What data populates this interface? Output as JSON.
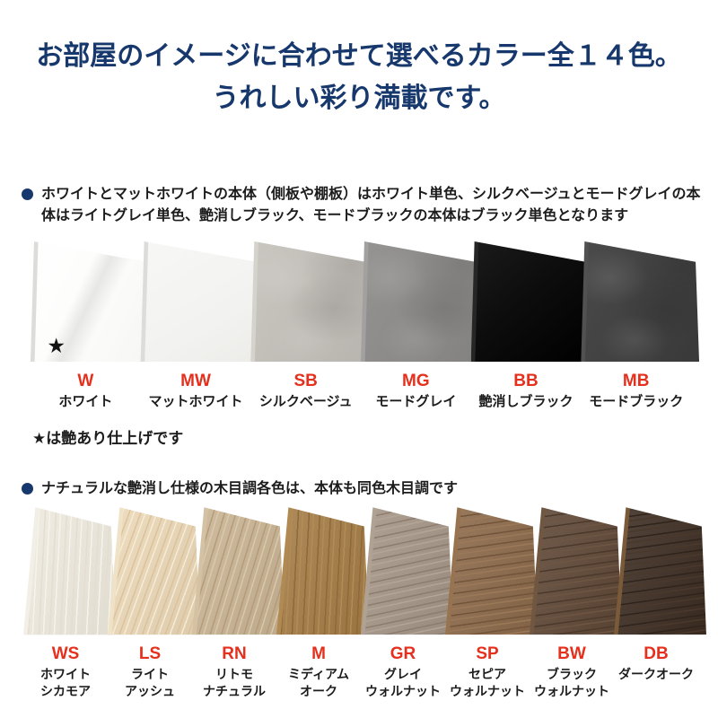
{
  "colors": {
    "title_navy": "#17386d",
    "bullet_navy": "#17386d",
    "code_red": "#e5301d",
    "body_text": "#1c1c1c",
    "page_background": "#ffffff"
  },
  "title": {
    "line1": "お部屋のイメージに合わせて選べるカラー全１４色。",
    "line2": "うれしい彩り満載です。"
  },
  "solid_section": {
    "note": "ホワイトとマットホワイトの本体（側板や棚板）はホワイト単色、シルクベージュとモードグレイの本体はライトグレイ単色、艶消しブラック、モードブラックの本体はブラック単色となります",
    "footnote": "★は艶あり仕上げです",
    "swatches": [
      {
        "code": "W",
        "name_lines": [
          "ホワイト"
        ],
        "finish": "gloss-white",
        "base": "#f6f6f5",
        "edge": "#dcdcda",
        "mark": "★"
      },
      {
        "code": "MW",
        "name_lines": [
          "マットホワイト"
        ],
        "finish": "matte-white",
        "base": "#f2f2f0",
        "edge": "#dcdcda"
      },
      {
        "code": "SB",
        "name_lines": [
          "シルクベージュ"
        ],
        "finish": "stone",
        "base": "#c6c2bc",
        "edge": "#d6d2cc"
      },
      {
        "code": "MG",
        "name_lines": [
          "モードグレイ"
        ],
        "finish": "stone",
        "base": "#8d8c8a",
        "edge": "#a2a19f"
      },
      {
        "code": "BB",
        "name_lines": [
          "艶消しブラック"
        ],
        "finish": "flat",
        "base": "#0d0d0d",
        "edge": "#262626"
      },
      {
        "code": "MB",
        "name_lines": [
          "モードブラック"
        ],
        "finish": "stone",
        "base": "#3d3d3d",
        "edge": "#515151"
      }
    ]
  },
  "wood_section": {
    "note": "ナチュラルな艶消し仕様の木目調各色は、本体も同色木目調です",
    "swatches": [
      {
        "code": "WS",
        "name_lines": [
          "ホワイト",
          "シカモア"
        ],
        "finish": "wood",
        "base": "#eeeadf",
        "light": "#f6f3ea",
        "dark": "#e3decf",
        "edge": "#f2efe6",
        "grain_deg": 93
      },
      {
        "code": "LS",
        "name_lines": [
          "ライト",
          "アッシュ"
        ],
        "finish": "wood",
        "base": "#ebd8b7",
        "light": "#f7ebd3",
        "dark": "#dcc29c",
        "edge": "#f0e2c6",
        "grain_deg": 110
      },
      {
        "code": "RN",
        "name_lines": [
          "リトモ",
          "ナチュラル"
        ],
        "finish": "wood",
        "base": "#c9b393",
        "light": "#dac8aa",
        "dark": "#b39c7a",
        "edge": "#d5c2a4",
        "grain_deg": 107
      },
      {
        "code": "M",
        "name_lines": [
          "ミディアム",
          "オーク"
        ],
        "finish": "wood",
        "base": "#a37b45",
        "light": "#b28c55",
        "dark": "#8f6936",
        "edge": "#b08a52",
        "grain_deg": 93
      },
      {
        "code": "GR",
        "name_lines": [
          "グレイ",
          "ウォルナット"
        ],
        "finish": "wood",
        "base": "#a39485",
        "light": "#b3a596",
        "dark": "#8d7d6e",
        "edge": "#b0a293",
        "grain_deg": 168
      },
      {
        "code": "SP",
        "name_lines": [
          "セピア",
          "ウォルナット"
        ],
        "finish": "wood",
        "base": "#8a6849",
        "light": "#9b7957",
        "dark": "#745439",
        "edge": "#97744f",
        "grain_deg": 172
      },
      {
        "code": "BW",
        "name_lines": [
          "ブラック",
          "ウォルナット"
        ],
        "finish": "wood",
        "base": "#5d4635",
        "light": "#6d5542",
        "dark": "#4c392a",
        "edge": "#6f5741",
        "grain_deg": 172
      },
      {
        "code": "DB",
        "name_lines": [
          "ダークオーク"
        ],
        "finish": "wood",
        "base": "#3b2c21",
        "light": "#4a392a",
        "dark": "#2f231a",
        "edge": "#7a5a39",
        "grain_deg": 172
      }
    ]
  }
}
